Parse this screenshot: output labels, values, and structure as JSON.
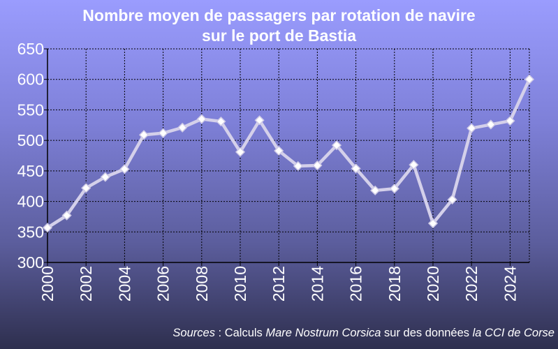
{
  "chart_data": {
    "type": "line",
    "title": [
      "Nombre moyen  de passagers par rotation de navire",
      "sur le port de Bastia"
    ],
    "xlabel": "",
    "ylabel": "",
    "x": [
      2000,
      2001,
      2002,
      2003,
      2004,
      2005,
      2006,
      2007,
      2008,
      2009,
      2010,
      2011,
      2012,
      2013,
      2014,
      2015,
      2016,
      2017,
      2018,
      2019,
      2020,
      2021,
      2022,
      2023,
      2024,
      2025
    ],
    "xticks": [
      "2000",
      "2002",
      "2004",
      "2006",
      "2008",
      "2010",
      "2012",
      "2014",
      "2016",
      "2018",
      "2020",
      "2022",
      "2024"
    ],
    "ylim": [
      300,
      650
    ],
    "yticks": [
      "300",
      "350",
      "400",
      "450",
      "500",
      "550",
      "600",
      "650"
    ],
    "series": [
      {
        "name": "",
        "values": [
          357,
          377,
          422,
          440,
          453,
          509,
          512,
          521,
          535,
          531,
          481,
          533,
          483,
          458,
          459,
          492,
          454,
          418,
          421,
          460,
          364,
          403,
          520,
          526,
          532,
          600
        ]
      }
    ],
    "grid": true,
    "legend": "none",
    "colors": {
      "line": "#d4d0ea",
      "marker_fill": "#ffffff",
      "marker_stroke": "#cfcbe6",
      "grid": "#000000",
      "text": "#ffffff"
    }
  },
  "source": {
    "prefix": "Sources",
    "sep": " : Calculs ",
    "author": "Mare Nostrum Corsica",
    "mid": " sur des données ",
    "origin": "la CCI de Corse"
  }
}
